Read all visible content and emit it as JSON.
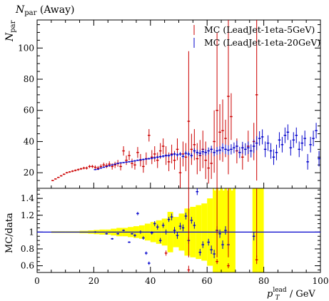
{
  "chart_data": {
    "type": "scatter",
    "title": "N_par (Away)",
    "title_main": "N",
    "title_sub": "par",
    "title_rest": " (Away)",
    "top": {
      "ylabel_main": "N",
      "ylabel_sub": "par",
      "xlim": [
        0,
        100
      ],
      "ylim": [
        10,
        118
      ],
      "yticks": [
        20,
        40,
        60,
        80,
        100
      ],
      "legend_position": "top-right",
      "series": [
        {
          "name": "MC (LeadJet-1eta-5GeV)",
          "color": "#cc0000",
          "points": [
            [
              5.5,
              15,
              0.4
            ],
            [
              6.5,
              16,
              0.4
            ],
            [
              7.5,
              17,
              0.4
            ],
            [
              8.5,
              18,
              0.5
            ],
            [
              9.5,
              19,
              0.5
            ],
            [
              10.5,
              20,
              0.5
            ],
            [
              11.5,
              20.5,
              0.5
            ],
            [
              12.5,
              21,
              0.6
            ],
            [
              13.5,
              21.5,
              0.6
            ],
            [
              14.5,
              22,
              0.7
            ],
            [
              15.5,
              22.5,
              0.7
            ],
            [
              16.5,
              23,
              0.8
            ],
            [
              17.5,
              23,
              0.9
            ],
            [
              18.5,
              24,
              1.0
            ],
            [
              19.5,
              24,
              1.0
            ],
            [
              20.5,
              23.5,
              1.2
            ],
            [
              21.5,
              23,
              1.3
            ],
            [
              22.5,
              24,
              1.4
            ],
            [
              23.5,
              25,
              1.5
            ],
            [
              24.5,
              24.5,
              1.6
            ],
            [
              25.5,
              25.5,
              1.8
            ],
            [
              26.5,
              24,
              2.0
            ],
            [
              27.5,
              25,
              2.0
            ],
            [
              28.5,
              26,
              2.2
            ],
            [
              29.5,
              24,
              2.5
            ],
            [
              30.5,
              34,
              3
            ],
            [
              31.5,
              28,
              3
            ],
            [
              32.5,
              31,
              3
            ],
            [
              33.5,
              26,
              3
            ],
            [
              34.5,
              25,
              3
            ],
            [
              35.5,
              33,
              3.5
            ],
            [
              36.5,
              28,
              4
            ],
            [
              37.5,
              24,
              4
            ],
            [
              38.5,
              29,
              4
            ],
            [
              39.5,
              44,
              4
            ],
            [
              40.5,
              30,
              4.5
            ],
            [
              41.5,
              32,
              5
            ],
            [
              42.5,
              28,
              5
            ],
            [
              43.5,
              34,
              5
            ],
            [
              44.5,
              37,
              5
            ],
            [
              45.5,
              31,
              6
            ],
            [
              46.5,
              27,
              6
            ],
            [
              47.5,
              32,
              6
            ],
            [
              48.5,
              28,
              6
            ],
            [
              49.5,
              35,
              7
            ],
            [
              50.5,
              20,
              10
            ],
            [
              51.5,
              32,
              8
            ],
            [
              52.5,
              30,
              9
            ],
            [
              53.5,
              53,
              45
            ],
            [
              54.5,
              35,
              10
            ],
            [
              55.5,
              38,
              10
            ],
            [
              56.5,
              29,
              10
            ],
            [
              57.5,
              31,
              10
            ],
            [
              58.5,
              35,
              12
            ],
            [
              59.5,
              28,
              12
            ],
            [
              60.5,
              23,
              10
            ],
            [
              61.5,
              26,
              10
            ],
            [
              62.5,
              40,
              20
            ],
            [
              63.5,
              60,
              50
            ],
            [
              64.5,
              46,
              18
            ],
            [
              65.5,
              47,
              20
            ],
            [
              66.5,
              42,
              12
            ],
            [
              67.5,
              69,
              50
            ],
            [
              68.5,
              56,
              15
            ],
            [
              70.5,
              34,
              8
            ],
            [
              72.5,
              30,
              8
            ],
            [
              74.5,
              37,
              10
            ],
            [
              76.5,
              40,
              12
            ],
            [
              77.5,
              70,
              55
            ]
          ]
        },
        {
          "name": "MC (LeadJet-1eta-20GeV)",
          "color": "#0000cc",
          "points": [
            [
              20.5,
              22,
              0.3
            ],
            [
              21.5,
              22.3,
              0.3
            ],
            [
              22.5,
              23,
              0.3
            ],
            [
              23.5,
              23.5,
              0.3
            ],
            [
              24.5,
              24,
              0.3
            ],
            [
              25.5,
              24.5,
              0.3
            ],
            [
              26.5,
              25,
              0.3
            ],
            [
              27.5,
              25.5,
              0.3
            ],
            [
              28.5,
              26,
              0.4
            ],
            [
              29.5,
              26.3,
              0.4
            ],
            [
              30.5,
              26.5,
              0.4
            ],
            [
              31.5,
              26.8,
              0.4
            ],
            [
              32.5,
              27,
              0.4
            ],
            [
              33.5,
              27.3,
              0.5
            ],
            [
              34.5,
              27.6,
              0.5
            ],
            [
              35.5,
              28,
              0.5
            ],
            [
              36.5,
              28.3,
              0.5
            ],
            [
              37.5,
              28.5,
              0.6
            ],
            [
              38.5,
              28.8,
              0.6
            ],
            [
              39.5,
              29,
              0.6
            ],
            [
              40.5,
              29.3,
              0.7
            ],
            [
              41.5,
              29.6,
              0.7
            ],
            [
              42.5,
              30,
              0.8
            ],
            [
              43.5,
              30.3,
              0.8
            ],
            [
              44.5,
              30.6,
              0.9
            ],
            [
              45.5,
              31,
              0.9
            ],
            [
              46.5,
              31,
              1.0
            ],
            [
              47.5,
              31.5,
              1.0
            ],
            [
              48.5,
              32,
              1.1
            ],
            [
              49.5,
              31.5,
              1.2
            ],
            [
              50.5,
              32,
              1.2
            ],
            [
              51.5,
              30.5,
              1.3
            ],
            [
              52.5,
              32.5,
              1.4
            ],
            [
              53.5,
              32,
              1.5
            ],
            [
              54.5,
              31,
              1.6
            ],
            [
              55.5,
              34,
              1.7
            ],
            [
              56.5,
              33,
              1.8
            ],
            [
              57.5,
              32.5,
              1.9
            ],
            [
              58.5,
              33.5,
              2.0
            ],
            [
              59.5,
              33,
              2.1
            ],
            [
              60.5,
              34,
              2.2
            ],
            [
              61.5,
              35,
              2.3
            ],
            [
              62.5,
              33,
              2.4
            ],
            [
              63.5,
              34,
              2.5
            ],
            [
              64.5,
              34.5,
              2.6
            ],
            [
              65.5,
              36,
              2.8
            ],
            [
              66.5,
              35,
              3.0
            ],
            [
              67.5,
              34.5,
              3.1
            ],
            [
              68.5,
              35,
              3.3
            ],
            [
              69.5,
              36,
              3.4
            ],
            [
              70.5,
              37,
              3.5
            ],
            [
              71.5,
              33,
              3.6
            ],
            [
              72.5,
              36,
              3.8
            ],
            [
              73.5,
              35,
              3.9
            ],
            [
              74.5,
              36,
              4.0
            ],
            [
              75.5,
              34,
              4.2
            ],
            [
              76.5,
              37,
              4.3
            ],
            [
              77.5,
              39,
              4.5
            ],
            [
              78.5,
              42,
              4.6
            ],
            [
              79.5,
              43,
              4.8
            ],
            [
              80.5,
              35,
              5
            ],
            [
              81.5,
              39,
              5
            ],
            [
              82.5,
              34,
              5
            ],
            [
              83.5,
              30,
              5
            ],
            [
              84.5,
              33,
              5
            ],
            [
              85.5,
              41,
              5
            ],
            [
              86.5,
              38,
              5
            ],
            [
              87.5,
              44,
              5
            ],
            [
              88.5,
              46,
              5
            ],
            [
              89.5,
              36,
              5
            ],
            [
              90.5,
              41,
              5
            ],
            [
              91.5,
              44,
              5
            ],
            [
              92.5,
              35,
              5
            ],
            [
              93.5,
              39,
              5
            ],
            [
              94.5,
              42,
              5
            ],
            [
              95.5,
              27,
              5
            ],
            [
              96.5,
              38,
              5
            ],
            [
              97.5,
              42,
              5
            ],
            [
              98.5,
              47,
              5
            ],
            [
              99.5,
              29,
              5
            ]
          ]
        }
      ]
    },
    "bottom": {
      "ylabel": "MC/data",
      "xlabel_main": "p",
      "xlabel_sub": "T",
      "xlabel_sup": "lead",
      "xlabel_rest": " / GeV",
      "xlim": [
        0,
        100
      ],
      "ylim": [
        0.52,
        1.52
      ],
      "yticks": [
        0.6,
        0.8,
        1,
        1.2,
        1.4
      ],
      "xticks": [
        0,
        20,
        40,
        60,
        80,
        100
      ],
      "reference": 1,
      "band": [
        [
          5,
          0.01
        ],
        [
          10,
          0.01
        ],
        [
          15,
          0.015
        ],
        [
          18,
          0.02
        ],
        [
          20,
          0.025
        ],
        [
          22,
          0.03
        ],
        [
          24,
          0.03
        ],
        [
          26,
          0.04
        ],
        [
          28,
          0.05
        ],
        [
          30,
          0.05
        ],
        [
          32,
          0.06
        ],
        [
          34,
          0.07
        ],
        [
          36,
          0.08
        ],
        [
          38,
          0.1
        ],
        [
          40,
          0.12
        ],
        [
          42,
          0.14
        ],
        [
          44,
          0.16
        ],
        [
          46,
          0.24
        ],
        [
          48,
          0.18
        ],
        [
          50,
          0.22
        ],
        [
          52,
          0.28
        ],
        [
          54,
          0.3
        ],
        [
          56,
          0.32
        ],
        [
          58,
          0.34
        ],
        [
          60,
          0.4
        ],
        [
          62,
          0.55
        ],
        [
          64,
          0.6
        ],
        [
          66,
          0.55
        ],
        [
          68,
          0.6
        ],
        [
          70,
          0
        ],
        [
          76,
          0.6
        ],
        [
          78,
          0.6
        ],
        [
          80,
          0
        ]
      ],
      "series": [
        {
          "name": "MC (LeadJet-1eta-5GeV)",
          "color": "#cc0000",
          "points": [
            [
              45.5,
              0.75,
              0.03
            ],
            [
              53.5,
              0.55,
              0.05
            ],
            [
              63.5,
              0.65,
              0.03
            ],
            [
              67.5,
              0.6,
              0.03
            ],
            [
              77.5,
              0.67,
              0.05
            ]
          ]
        },
        {
          "name": "MC (LeadJet-1eta-20GeV)",
          "color": "#0000cc",
          "points": [
            [
              20.5,
              1.0,
              0.01
            ],
            [
              24.5,
              0.98,
              0.01
            ],
            [
              26.5,
              0.92,
              0.01
            ],
            [
              28.5,
              0.98,
              0.01
            ],
            [
              30.5,
              1.02,
              0.01
            ],
            [
              32.5,
              0.88,
              0.01
            ],
            [
              33.5,
              0.98,
              0.01
            ],
            [
              34.5,
              0.96,
              0.02
            ],
            [
              35.5,
              1.22,
              0.02
            ],
            [
              36.5,
              1.0,
              0.02
            ],
            [
              37.5,
              0.93,
              0.02
            ],
            [
              38.5,
              0.75,
              0.02
            ],
            [
              39.5,
              0.63,
              0.02
            ],
            [
              40.5,
              0.99,
              0.02
            ],
            [
              41.5,
              1.1,
              0.03
            ],
            [
              42.5,
              1.06,
              0.03
            ],
            [
              43.5,
              0.9,
              0.03
            ],
            [
              44.5,
              1.08,
              0.03
            ],
            [
              45.5,
              1.0,
              0.03
            ],
            [
              46.5,
              1.15,
              0.03
            ],
            [
              47.5,
              1.18,
              0.04
            ],
            [
              48.5,
              1.02,
              0.04
            ],
            [
              49.5,
              0.96,
              0.04
            ],
            [
              50.5,
              1.07,
              0.04
            ],
            [
              51.5,
              1.05,
              0.04
            ],
            [
              52.5,
              1.19,
              0.04
            ],
            [
              53.5,
              0.9,
              0.04
            ],
            [
              54.5,
              1.14,
              0.04
            ],
            [
              55.5,
              1.08,
              0.04
            ],
            [
              56.5,
              1.48,
              0.04
            ],
            [
              57.5,
              0.76,
              0.04
            ],
            [
              58.5,
              0.85,
              0.04
            ],
            [
              60.5,
              0.88,
              0.04
            ],
            [
              61.5,
              0.79,
              0.05
            ],
            [
              62.5,
              0.74,
              0.05
            ],
            [
              63.5,
              1.02,
              0.05
            ],
            [
              64.5,
              0.98,
              0.05
            ],
            [
              65.5,
              0.85,
              0.05
            ],
            [
              66.5,
              1.02,
              0.05
            ],
            [
              67.5,
              0.85,
              0.05
            ],
            [
              76.5,
              0.95,
              0.05
            ]
          ]
        }
      ]
    }
  }
}
